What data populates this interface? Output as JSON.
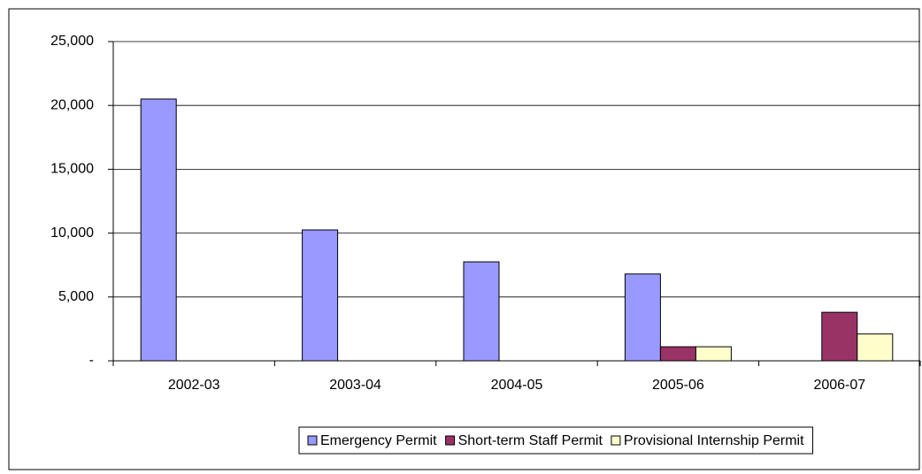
{
  "chart_data": {
    "type": "bar",
    "categories": [
      "2002-03",
      "2003-04",
      "2004-05",
      "2005-06",
      "2006-07"
    ],
    "series": [
      {
        "name": "Emergency Permit",
        "color": "#9999ff",
        "values": [
          20500,
          10250,
          7750,
          6800,
          null
        ]
      },
      {
        "name": "Short-term Staff Permit",
        "color": "#993366",
        "values": [
          null,
          null,
          null,
          1100,
          3800
        ]
      },
      {
        "name": "Provisional Internship Permit",
        "color": "#ffffcc",
        "values": [
          null,
          null,
          null,
          1100,
          2100
        ]
      }
    ],
    "ylim": [
      0,
      25000
    ],
    "yticks": [
      {
        "value": 0,
        "label": "-"
      },
      {
        "value": 5000,
        "label": "5,000"
      },
      {
        "value": 10000,
        "label": "10,000"
      },
      {
        "value": 15000,
        "label": "15,000"
      },
      {
        "value": 20000,
        "label": "20,000"
      },
      {
        "value": 25000,
        "label": "25,000"
      }
    ],
    "grid": true,
    "legend": "bottom"
  }
}
